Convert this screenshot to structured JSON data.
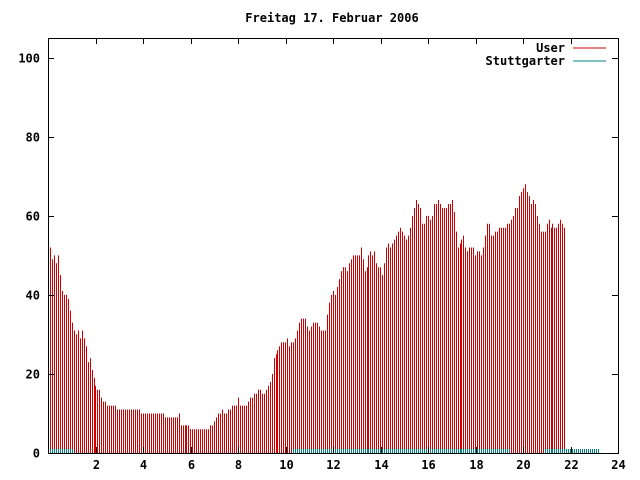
{
  "chart_data": {
    "type": "bar",
    "title": "Freitag 17. Februar 2006",
    "xlabel": "",
    "ylabel": "",
    "xlim": [
      0,
      24
    ],
    "ylim": [
      0,
      105
    ],
    "x_ticks": [
      2,
      4,
      6,
      8,
      10,
      12,
      14,
      16,
      18,
      20,
      22,
      24
    ],
    "x_tick_labels": [
      "2",
      "4",
      "6",
      "8",
      "10",
      "12",
      "14",
      "16",
      "18",
      "20",
      "22",
      "24"
    ],
    "y_ticks": [
      0,
      20,
      40,
      60,
      80,
      100
    ],
    "y_tick_labels": [
      "0",
      "20",
      "40",
      "60",
      "80",
      "100"
    ],
    "grid": false,
    "legend_position": "top-right",
    "sample_interval_hours": 0.0833,
    "series": [
      {
        "name": "User",
        "color": "#cc0000",
        "values": [
          50,
          52,
          49,
          50,
          48,
          50,
          45,
          41,
          40,
          40,
          39,
          36,
          33,
          31,
          30,
          31,
          29,
          31,
          29,
          27,
          23,
          24,
          21,
          19,
          17,
          16,
          16,
          14,
          13,
          13,
          12,
          12,
          12,
          12,
          12,
          11,
          11,
          11,
          11,
          11,
          11,
          11,
          11,
          11,
          11,
          11,
          11,
          10,
          10,
          10,
          10,
          10,
          10,
          10,
          10,
          10,
          10,
          10,
          10,
          9,
          9,
          9,
          9,
          9,
          9,
          9,
          10,
          7,
          7,
          7,
          7,
          7,
          6,
          6,
          6,
          6,
          6,
          6,
          6,
          6,
          6,
          6,
          7,
          7,
          8,
          9,
          10,
          10,
          11,
          10,
          10,
          11,
          11,
          12,
          12,
          12,
          14,
          12,
          12,
          12,
          12,
          13,
          14,
          14,
          15,
          15,
          16,
          16,
          15,
          15,
          16,
          17,
          18,
          20,
          24,
          25,
          26,
          27,
          28,
          28,
          28,
          29,
          27,
          28,
          28,
          29,
          31,
          33,
          34,
          34,
          34,
          32,
          31,
          32,
          33,
          33,
          33,
          32,
          31,
          31,
          31,
          35,
          38,
          40,
          41,
          40,
          42,
          44,
          46,
          47,
          47,
          46,
          48,
          49,
          50,
          50,
          50,
          50,
          52,
          49,
          46,
          47,
          50,
          51,
          50,
          51,
          48,
          47,
          47,
          45,
          48,
          52,
          53,
          52,
          53,
          54,
          55,
          56,
          57,
          56,
          55,
          54,
          55,
          57,
          60,
          62,
          64,
          63,
          62,
          58,
          58,
          60,
          60,
          59,
          60,
          63,
          63,
          64,
          63,
          62,
          62,
          62,
          63,
          63,
          64,
          61,
          56,
          52,
          53,
          54,
          55,
          52,
          51,
          52,
          52,
          52,
          50,
          51,
          51,
          50,
          52,
          55,
          58,
          58,
          55,
          55,
          56,
          56,
          57,
          57,
          57,
          57,
          58,
          58,
          59,
          60,
          62,
          62,
          65,
          66,
          67,
          68,
          66,
          65,
          63,
          64,
          63,
          60,
          58,
          56,
          56,
          56,
          58,
          59,
          57,
          58,
          57,
          57,
          58,
          59,
          58,
          57
        ]
      },
      {
        "name": "Stuttgarter",
        "color": "#008080",
        "values": [
          1,
          1,
          1,
          1,
          1,
          1,
          1,
          1,
          1,
          1,
          1,
          1,
          1,
          0,
          0,
          0,
          0,
          0,
          0,
          0,
          0,
          0,
          0,
          0,
          0,
          0,
          0,
          0,
          0,
          0,
          0,
          0,
          0,
          0,
          0,
          0,
          0,
          0,
          0,
          0,
          0,
          0,
          0,
          0,
          0,
          0,
          0,
          0,
          0,
          0,
          0,
          0,
          0,
          0,
          0,
          0,
          0,
          0,
          0,
          0,
          0,
          0,
          0,
          0,
          0,
          0,
          0,
          0,
          0,
          0,
          0,
          0,
          0,
          0,
          0,
          0,
          0,
          0,
          0,
          0,
          0,
          0,
          0,
          0,
          0,
          0,
          0,
          0,
          0,
          0,
          0,
          0,
          0,
          0,
          0,
          0,
          0,
          0,
          0,
          0,
          0,
          0,
          0,
          0,
          0,
          0,
          0,
          0,
          0,
          0,
          0,
          0,
          0,
          0,
          0,
          0,
          0,
          0,
          0,
          0,
          0,
          0,
          0,
          0,
          1,
          1,
          1,
          1,
          1,
          1,
          1,
          1,
          1,
          1,
          1,
          1,
          1,
          1,
          1,
          1,
          1,
          1,
          1,
          1,
          1,
          1,
          1,
          1,
          1,
          1,
          1,
          1,
          1,
          1,
          1,
          1,
          1,
          1,
          1,
          1,
          1,
          1,
          1,
          1,
          1,
          1,
          1,
          1,
          1,
          1,
          1,
          1,
          1,
          1,
          1,
          1,
          1,
          1,
          1,
          1,
          1,
          1,
          1,
          1,
          1,
          1,
          1,
          1,
          1,
          1,
          1,
          1,
          1,
          1,
          1,
          1,
          1,
          1,
          1,
          1,
          1,
          1,
          1,
          1,
          1,
          1,
          1,
          1,
          1,
          1,
          1,
          1,
          1,
          1,
          1,
          1,
          1,
          1,
          1,
          1,
          1,
          1,
          1,
          1,
          1,
          1,
          1,
          1,
          1,
          1,
          1,
          1,
          1,
          1,
          0,
          0,
          0,
          0,
          0,
          0,
          0,
          0,
          0,
          0,
          0,
          0,
          0,
          0,
          0,
          0,
          0,
          1,
          1,
          1,
          1,
          1,
          1,
          1,
          1,
          1,
          1,
          1,
          1,
          1,
          1,
          1,
          1,
          1,
          1,
          1,
          1,
          1,
          1,
          1,
          1,
          1,
          1,
          1,
          1
        ]
      }
    ]
  }
}
